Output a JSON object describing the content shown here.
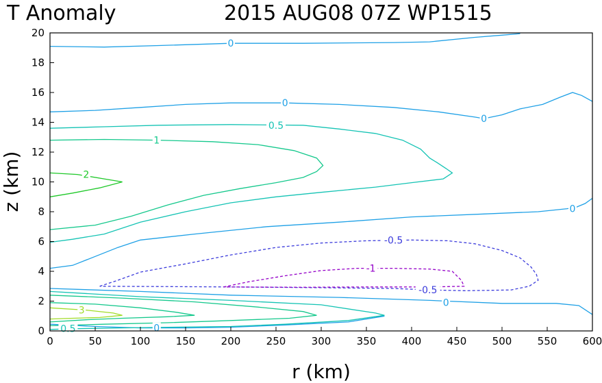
{
  "chart_data": {
    "type": "contour",
    "title_left": "T Anomaly",
    "title_right": "2015 AUG08 07Z   WP1515",
    "xlabel": "r (km)",
    "ylabel": "z (km)",
    "xlim": [
      0,
      600
    ],
    "ylim": [
      0,
      20
    ],
    "xticks": [
      "0",
      "50",
      "100",
      "150",
      "200",
      "250",
      "300",
      "350",
      "400",
      "450",
      "500",
      "550",
      "600"
    ],
    "yticks": [
      "0",
      "2",
      "4",
      "6",
      "8",
      "10",
      "12",
      "14",
      "16",
      "18",
      "20"
    ],
    "grid": false,
    "colors": {
      "neg1": "#9400c8",
      "neg05": "#3c3cdc",
      "zero": "#1ea0e6",
      "pos05": "#14c3b4",
      "pos1": "#14c88c",
      "pos2": "#1ec828",
      "pos3": "#a0dc28"
    },
    "contours": [
      {
        "level": "0",
        "color_key": "zero",
        "dashed": false,
        "points": [
          [
            0,
            19.1
          ],
          [
            60,
            19.05
          ],
          [
            120,
            19.15
          ],
          [
            200,
            19.3
          ],
          [
            280,
            19.3
          ],
          [
            380,
            19.35
          ],
          [
            420,
            19.4
          ],
          [
            470,
            19.7
          ],
          [
            500,
            19.85
          ],
          [
            520,
            19.95
          ]
        ]
      },
      {
        "level": "0",
        "color_key": "zero",
        "dashed": false,
        "points": [
          [
            0,
            14.7
          ],
          [
            50,
            14.8
          ],
          [
            100,
            15.0
          ],
          [
            150,
            15.2
          ],
          [
            200,
            15.3
          ],
          [
            260,
            15.3
          ],
          [
            320,
            15.2
          ],
          [
            380,
            15.0
          ],
          [
            430,
            14.7
          ],
          [
            470,
            14.35
          ],
          [
            480,
            14.25
          ],
          [
            500,
            14.5
          ],
          [
            520,
            14.9
          ],
          [
            545,
            15.2
          ],
          [
            565,
            15.7
          ],
          [
            578,
            16.0
          ],
          [
            588,
            15.8
          ],
          [
            600,
            15.4
          ]
        ]
      },
      {
        "level": "0",
        "color_key": "zero",
        "dashed": false,
        "points": [
          [
            0,
            4.2
          ],
          [
            25,
            4.4
          ],
          [
            50,
            5.0
          ],
          [
            75,
            5.6
          ],
          [
            100,
            6.1
          ],
          [
            160,
            6.5
          ],
          [
            240,
            7.0
          ],
          [
            320,
            7.3
          ],
          [
            400,
            7.65
          ],
          [
            480,
            7.85
          ],
          [
            540,
            8.0
          ],
          [
            572,
            8.2
          ],
          [
            582,
            8.3
          ],
          [
            592,
            8.55
          ],
          [
            600,
            8.9
          ]
        ]
      },
      {
        "level": "0",
        "color_key": "zero",
        "dashed": false,
        "points": [
          [
            0,
            2.85
          ],
          [
            100,
            2.65
          ],
          [
            200,
            2.4
          ],
          [
            320,
            2.25
          ],
          [
            420,
            2.05
          ],
          [
            500,
            1.85
          ],
          [
            560,
            1.85
          ],
          [
            585,
            1.7
          ],
          [
            600,
            1.1
          ]
        ]
      },
      {
        "level": "0",
        "color_key": "zero",
        "dashed": false,
        "points": [
          [
            0,
            0.45
          ],
          [
            50,
            0.3
          ],
          [
            100,
            0.2
          ],
          [
            150,
            0.2
          ],
          [
            200,
            0.25
          ],
          [
            260,
            0.4
          ],
          [
            330,
            0.6
          ],
          [
            370,
            1.0
          ]
        ]
      },
      {
        "level": "0.5",
        "color_key": "pos05",
        "dashed": false,
        "points": [
          [
            0,
            13.6
          ],
          [
            60,
            13.7
          ],
          [
            120,
            13.8
          ],
          [
            200,
            13.85
          ],
          [
            280,
            13.8
          ],
          [
            320,
            13.55
          ],
          [
            360,
            13.25
          ],
          [
            390,
            12.8
          ],
          [
            410,
            12.2
          ],
          [
            420,
            11.6
          ],
          [
            428,
            11.3
          ],
          [
            438,
            10.9
          ],
          [
            445,
            10.6
          ],
          [
            435,
            10.2
          ],
          [
            400,
            9.95
          ],
          [
            360,
            9.65
          ],
          [
            300,
            9.3
          ],
          [
            250,
            9.0
          ],
          [
            200,
            8.6
          ],
          [
            150,
            8.0
          ],
          [
            100,
            7.3
          ],
          [
            60,
            6.5
          ],
          [
            25,
            6.15
          ],
          [
            0,
            5.95
          ]
        ]
      },
      {
        "level": "0.5",
        "color_key": "pos05",
        "dashed": false,
        "points": [
          [
            0,
            2.65
          ],
          [
            100,
            2.3
          ],
          [
            200,
            2.05
          ],
          [
            300,
            1.75
          ],
          [
            360,
            1.2
          ],
          [
            370,
            1.05
          ],
          [
            330,
            0.7
          ],
          [
            260,
            0.45
          ],
          [
            200,
            0.3
          ],
          [
            130,
            0.25
          ],
          [
            80,
            0.2
          ],
          [
            30,
            0.15
          ],
          [
            0,
            0.1
          ]
        ]
      },
      {
        "level": "1",
        "color_key": "pos1",
        "dashed": false,
        "points": [
          [
            0,
            12.8
          ],
          [
            60,
            12.85
          ],
          [
            120,
            12.8
          ],
          [
            180,
            12.7
          ],
          [
            230,
            12.5
          ],
          [
            270,
            12.1
          ],
          [
            295,
            11.6
          ],
          [
            302,
            11.1
          ],
          [
            295,
            10.7
          ],
          [
            280,
            10.3
          ],
          [
            250,
            9.95
          ],
          [
            210,
            9.55
          ],
          [
            170,
            9.1
          ],
          [
            130,
            8.45
          ],
          [
            90,
            7.7
          ],
          [
            50,
            7.1
          ],
          [
            0,
            6.8
          ]
        ]
      },
      {
        "level": "1",
        "color_key": "pos1",
        "dashed": false,
        "points": [
          [
            0,
            2.4
          ],
          [
            80,
            2.2
          ],
          [
            160,
            1.95
          ],
          [
            230,
            1.6
          ],
          [
            280,
            1.3
          ],
          [
            295,
            1.05
          ],
          [
            265,
            0.85
          ],
          [
            200,
            0.7
          ],
          [
            130,
            0.55
          ],
          [
            60,
            0.45
          ],
          [
            0,
            0.35
          ]
        ]
      },
      {
        "level": "1",
        "color_key": "pos1",
        "dashed": false,
        "points": [
          [
            0,
            1.9
          ],
          [
            50,
            1.8
          ],
          [
            100,
            1.55
          ],
          [
            140,
            1.25
          ],
          [
            160,
            1.05
          ],
          [
            130,
            0.95
          ],
          [
            80,
            0.85
          ],
          [
            40,
            0.75
          ],
          [
            0,
            0.6
          ]
        ]
      },
      {
        "level": "2",
        "color_key": "pos2",
        "dashed": false,
        "points": [
          [
            0,
            10.6
          ],
          [
            30,
            10.5
          ],
          [
            60,
            10.2
          ],
          [
            80,
            10.0
          ],
          [
            55,
            9.6
          ],
          [
            25,
            9.25
          ],
          [
            0,
            9.0
          ]
        ]
      },
      {
        "level": "3",
        "color_key": "pos3",
        "dashed": false,
        "points": [
          [
            0,
            1.55
          ],
          [
            40,
            1.4
          ],
          [
            70,
            1.2
          ],
          [
            80,
            1.05
          ],
          [
            55,
            0.9
          ],
          [
            25,
            0.85
          ],
          [
            0,
            0.8
          ]
        ]
      },
      {
        "level": "-0.5",
        "color_key": "neg05",
        "dashed": true,
        "points": [
          [
            55,
            3.0
          ],
          [
            75,
            3.4
          ],
          [
            100,
            3.95
          ],
          [
            150,
            4.5
          ],
          [
            200,
            5.1
          ],
          [
            250,
            5.6
          ],
          [
            300,
            5.9
          ],
          [
            350,
            6.05
          ],
          [
            400,
            6.1
          ],
          [
            440,
            6.05
          ],
          [
            470,
            5.85
          ],
          [
            500,
            5.4
          ],
          [
            520,
            4.9
          ],
          [
            532,
            4.3
          ],
          [
            538,
            3.8
          ],
          [
            540,
            3.4
          ],
          [
            530,
            3.0
          ],
          [
            510,
            2.75
          ],
          [
            460,
            2.7
          ],
          [
            420,
            2.75
          ],
          [
            380,
            2.85
          ],
          [
            300,
            2.9
          ],
          [
            200,
            2.95
          ],
          [
            120,
            2.98
          ],
          [
            55,
            3.0
          ]
        ]
      },
      {
        "level": "-1",
        "color_key": "neg1",
        "dashed": true,
        "points": [
          [
            192,
            2.95
          ],
          [
            220,
            3.3
          ],
          [
            260,
            3.7
          ],
          [
            300,
            4.05
          ],
          [
            340,
            4.2
          ],
          [
            380,
            4.2
          ],
          [
            420,
            4.15
          ],
          [
            445,
            4.0
          ],
          [
            455,
            3.4
          ],
          [
            458,
            3.0
          ],
          [
            420,
            2.95
          ],
          [
            350,
            2.95
          ],
          [
            280,
            2.93
          ],
          [
            192,
            2.95
          ]
        ]
      }
    ],
    "contour_labels": [
      {
        "text": "0",
        "x": 200,
        "y": 19.3,
        "color_key": "zero"
      },
      {
        "text": "0",
        "x": 260,
        "y": 15.3,
        "color_key": "zero"
      },
      {
        "text": "0",
        "x": 480,
        "y": 14.25,
        "color_key": "zero"
      },
      {
        "text": "0",
        "x": 578,
        "y": 8.2,
        "color_key": "zero"
      },
      {
        "text": "0",
        "x": 438,
        "y": 1.9,
        "color_key": "zero"
      },
      {
        "text": "0",
        "x": 118,
        "y": 0.2,
        "color_key": "zero"
      },
      {
        "text": "0.5",
        "x": 250,
        "y": 13.8,
        "color_key": "pos05"
      },
      {
        "text": "1",
        "x": 118,
        "y": 12.8,
        "color_key": "pos1"
      },
      {
        "text": "2",
        "x": 40,
        "y": 10.5,
        "color_key": "pos2"
      },
      {
        "text": "3",
        "x": 35,
        "y": 1.4,
        "color_key": "pos3"
      },
      {
        "text": "0.5",
        "x": 20,
        "y": 0.15,
        "color_key": "pos05"
      },
      {
        "text": "-0.5",
        "x": 380,
        "y": 6.1,
        "color_key": "neg05"
      },
      {
        "text": "-0.5",
        "x": 418,
        "y": 2.75,
        "color_key": "neg05"
      },
      {
        "text": "-1",
        "x": 355,
        "y": 4.2,
        "color_key": "neg1"
      }
    ]
  }
}
